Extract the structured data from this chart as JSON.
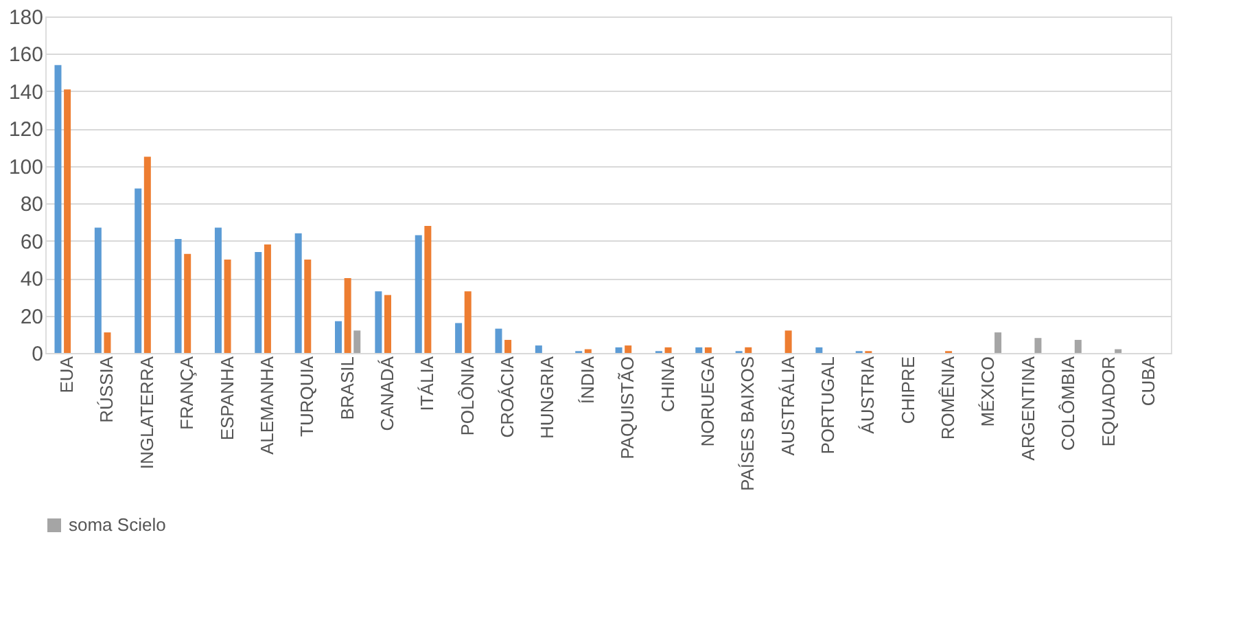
{
  "chart_data": {
    "type": "bar",
    "categories": [
      "EUA",
      "RÚSSIA",
      "INGLATERRA",
      "FRANÇA",
      "ESPANHA",
      "ALEMANHA",
      "TURQUIA",
      "BRASIL",
      "CANADÁ",
      "ITÁLIA",
      "POLÔNIA",
      "CROÁCIA",
      "HUNGRIA",
      "ÍNDIA",
      "PAQUISTÃO",
      "CHINA",
      "NORUEGA",
      "PAÍSES BAIXOS",
      "AUSTRÁLIA",
      "PORTUGAL",
      "ÁUSTRIA",
      "CHIPRE",
      "ROMÊNIA",
      "MÉXICO",
      "ARGENTINA",
      "COLÔMBIA",
      "EQUADOR",
      "CUBA"
    ],
    "series": [
      {
        "color": "#5b9bd5",
        "values": [
          154,
          67,
          88,
          61,
          67,
          54,
          64,
          17,
          33,
          63,
          16,
          13,
          4,
          1,
          3,
          1,
          3,
          1,
          0,
          3,
          1,
          0,
          0,
          0,
          0,
          0,
          0,
          0
        ]
      },
      {
        "color": "#ed7d31",
        "values": [
          141,
          11,
          105,
          53,
          50,
          58,
          50,
          40,
          31,
          68,
          33,
          7,
          0,
          2,
          4,
          3,
          3,
          3,
          12,
          0,
          1,
          0,
          1,
          0,
          0,
          0,
          0,
          0
        ]
      },
      {
        "name": "soma Scielo",
        "color": "#a5a5a5",
        "values": [
          0,
          0,
          0,
          0,
          0,
          0,
          0,
          12,
          0,
          0,
          0,
          0,
          0,
          0,
          0,
          0,
          0,
          0,
          0,
          0,
          0,
          0,
          0,
          11,
          8,
          7,
          2,
          0
        ]
      }
    ],
    "ylim": [
      0,
      180
    ],
    "yticks": [
      0,
      20,
      40,
      60,
      80,
      100,
      120,
      140,
      160,
      180
    ],
    "grid": "y",
    "legend": "bottom"
  }
}
